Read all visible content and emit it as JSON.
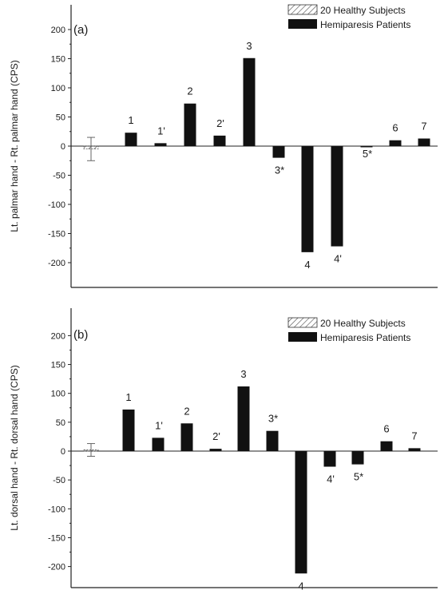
{
  "chart_data": [
    {
      "type": "bar",
      "panel_label": "(a)",
      "ylabel": "Lt. palmar hand - Rt. palmar hand (CPS)",
      "ylim": [
        -210,
        220
      ],
      "yticks": [
        200,
        150,
        100,
        50,
        0,
        -50,
        -100,
        -150,
        -200
      ],
      "legend_position": "top-right",
      "series": [
        {
          "name": "20 Healthy Subjects",
          "style": "hatched",
          "points": [
            {
              "label": "",
              "value": -5,
              "error": 20
            }
          ]
        },
        {
          "name": "Hemiparesis Patients",
          "style": "solid",
          "points": [
            {
              "label": "1",
              "value": 23
            },
            {
              "label": "1'",
              "value": 5
            },
            {
              "label": "2",
              "value": 73
            },
            {
              "label": "2'",
              "value": 18
            },
            {
              "label": "3",
              "value": 151
            },
            {
              "label": "3*",
              "value": -20
            },
            {
              "label": "4",
              "value": -182
            },
            {
              "label": "4'",
              "value": -172
            },
            {
              "label": "5*",
              "value": -2
            },
            {
              "label": "6",
              "value": 10
            },
            {
              "label": "7",
              "value": 13
            }
          ]
        }
      ]
    },
    {
      "type": "bar",
      "panel_label": "(b)",
      "ylabel": "Lt. dorsal hand - Rt. dorsal hand (CPS)",
      "ylim": [
        -215,
        220
      ],
      "yticks": [
        200,
        150,
        100,
        50,
        0,
        -50,
        -100,
        -150,
        -200
      ],
      "legend_position": "top-right",
      "series": [
        {
          "name": "20 Healthy Subjects",
          "style": "hatched",
          "points": [
            {
              "label": "",
              "value": 2,
              "error": 11
            }
          ]
        },
        {
          "name": "Hemiparesis Patients",
          "style": "solid",
          "points": [
            {
              "label": "1",
              "value": 72
            },
            {
              "label": "1'",
              "value": 23
            },
            {
              "label": "2",
              "value": 48
            },
            {
              "label": "2'",
              "value": 4
            },
            {
              "label": "3",
              "value": 112
            },
            {
              "label": "3*",
              "value": 35
            },
            {
              "label": "4",
              "value": -212
            },
            {
              "label": "4'",
              "value": -27
            },
            {
              "label": "5*",
              "value": -23
            },
            {
              "label": "6",
              "value": 17
            },
            {
              "label": "7",
              "value": 5
            }
          ]
        }
      ]
    }
  ]
}
